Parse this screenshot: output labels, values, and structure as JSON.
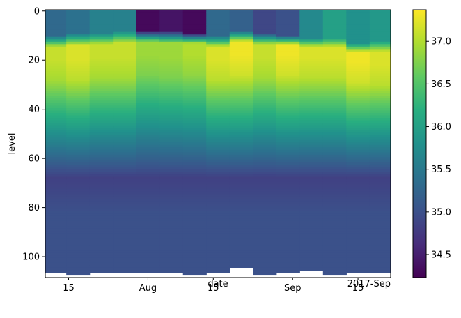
{
  "chart_data": {
    "type": "heatmap",
    "xlabel": "date",
    "ylabel": "level",
    "x_ticks": [
      {
        "date": "2017-07-15",
        "label": "15"
      },
      {
        "date": "2017-08-01",
        "label": "Aug"
      },
      {
        "date": "2017-08-15",
        "label": "15"
      },
      {
        "date": "2017-09-01",
        "label": "Sep"
      },
      {
        "date": "2017-09-15",
        "label": "15"
      }
    ],
    "x_offset_label": "2017-Sep",
    "y_ticks": [
      0,
      20,
      40,
      60,
      80,
      100
    ],
    "y_inverted": true,
    "ylim": [
      108.5,
      -0.5
    ],
    "colormap": "viridis",
    "colorbar": {
      "ticks": [
        34.5,
        35.0,
        35.5,
        36.0,
        36.5,
        37.0
      ],
      "tick_labels": [
        "34.5",
        "35.0",
        "35.5",
        "36.0",
        "36.5",
        "37.0"
      ],
      "vmin": 34.23,
      "vmax": 37.37
    },
    "profiles": [
      {
        "date": "2017-07-12",
        "surface": 35.3,
        "mixed_depth": 10,
        "max": 37.1,
        "max_depth": 20,
        "deep": 35.0,
        "bottom_level": 107
      },
      {
        "date": "2017-07-17",
        "surface": 35.4,
        "mixed_depth": 9,
        "max": 37.2,
        "max_depth": 20,
        "deep": 35.0,
        "bottom_level": 108
      },
      {
        "date": "2017-07-22",
        "surface": 35.6,
        "mixed_depth": 9,
        "max": 37.1,
        "max_depth": 19,
        "deep": 35.0,
        "bottom_level": 107
      },
      {
        "date": "2017-07-27",
        "surface": 35.6,
        "mixed_depth": 8,
        "max": 37.1,
        "max_depth": 19,
        "deep": 35.0,
        "bottom_level": 107
      },
      {
        "date": "2017-08-01",
        "surface": 34.3,
        "mixed_depth": 8,
        "max": 36.9,
        "max_depth": 18,
        "deep": 35.0,
        "bottom_level": 107
      },
      {
        "date": "2017-08-06",
        "surface": 34.4,
        "mixed_depth": 8,
        "max": 36.9,
        "max_depth": 19,
        "deep": 35.0,
        "bottom_level": 107
      },
      {
        "date": "2017-08-11",
        "surface": 34.3,
        "mixed_depth": 9,
        "max": 37.0,
        "max_depth": 18,
        "deep": 35.0,
        "bottom_level": 108
      },
      {
        "date": "2017-08-16",
        "surface": 35.3,
        "mixed_depth": 10,
        "max": 37.2,
        "max_depth": 20,
        "deep": 35.0,
        "bottom_level": 107
      },
      {
        "date": "2017-08-21",
        "surface": 35.2,
        "mixed_depth": 8,
        "max": 37.3,
        "max_depth": 18,
        "deep": 35.0,
        "bottom_level": 105
      },
      {
        "date": "2017-08-26",
        "surface": 34.9,
        "mixed_depth": 9,
        "max": 37.1,
        "max_depth": 19,
        "deep": 35.0,
        "bottom_level": 108
      },
      {
        "date": "2017-08-31",
        "surface": 35.0,
        "mixed_depth": 10,
        "max": 37.3,
        "max_depth": 18,
        "deep": 35.0,
        "bottom_level": 107
      },
      {
        "date": "2017-09-05",
        "surface": 35.7,
        "mixed_depth": 11,
        "max": 37.2,
        "max_depth": 19,
        "deep": 35.0,
        "bottom_level": 106
      },
      {
        "date": "2017-09-10",
        "surface": 36.0,
        "mixed_depth": 11,
        "max": 37.2,
        "max_depth": 19,
        "deep": 35.0,
        "bottom_level": 108
      },
      {
        "date": "2017-09-15",
        "surface": 35.8,
        "mixed_depth": 13,
        "max": 37.3,
        "max_depth": 21,
        "deep": 35.0,
        "bottom_level": 107
      },
      {
        "date": "2017-09-20",
        "surface": 35.9,
        "mixed_depth": 12,
        "max": 37.2,
        "max_depth": 22,
        "deep": 35.0,
        "bottom_level": 107
      }
    ]
  }
}
